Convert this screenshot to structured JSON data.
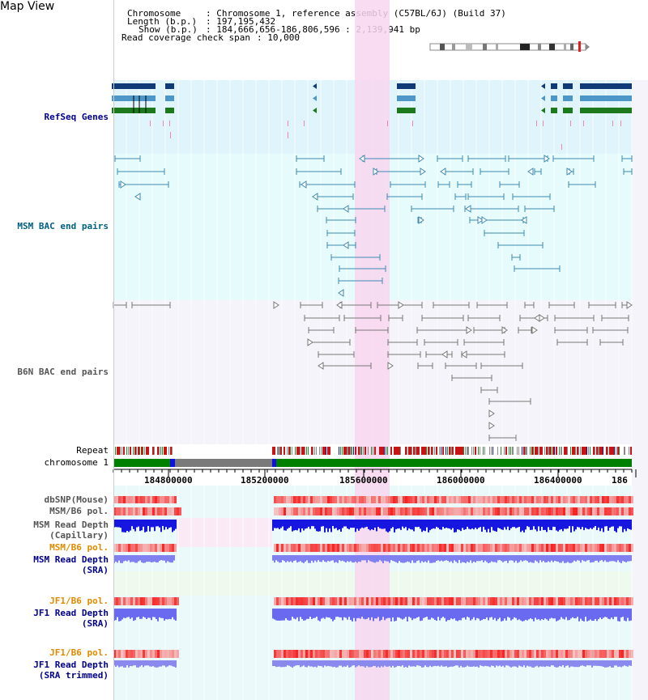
{
  "title": "Map View",
  "header": {
    "chromosome_label": "Chromosome",
    "chromosome_value": ": Chromosome 1, reference assembly (C57BL/6J) (Build 37)",
    "length_label": "Length (b.p.)",
    "length_value": ": 197,195,432",
    "show_label": "Show (b.p.)",
    "show_value": ": 184,666,656-186,806,596 : 2,139,941 bp",
    "span_label": "Read coverage check span",
    "span_value": ": 10,000"
  },
  "tracks": {
    "refseq": "RefSeq Genes",
    "msm_bac": "MSM BAC end pairs",
    "b6n_bac": "B6N BAC end pairs",
    "repeat": "Repeat",
    "chromosome": "chromosome 1",
    "dbsnp": "dbSNP(Mouse)",
    "msm_b6_pol": "MSM/B6 pol.",
    "msm_depth_cap_1": "MSM Read Depth",
    "msm_depth_cap_2": "(Capillary)",
    "msm_b6_pol_2": "MSM/B6 pol.",
    "msm_depth_sra_1": "MSM Read Depth",
    "msm_depth_sra_2": "(SRA)",
    "jf1_b6_pol": "JF1/B6 pol.",
    "jf1_depth_sra_1": "JF1 Read Depth",
    "jf1_depth_sra_2": "(SRA)",
    "jf1_b6_pol_2": "JF1/B6 pol.",
    "jf1_depth_trim_1": "JF1 Read Depth",
    "jf1_depth_trim_2": "(SRA trimmed)"
  },
  "axis_ticks": [
    "184800000",
    "185200000",
    "185600000",
    "186000000",
    "186400000",
    "186"
  ],
  "colors": {
    "refseq_bg": "#e0f4fb",
    "msm_bg": "#e6fbfb",
    "b6n_bg": "#f4f4fa",
    "highlight": "#f8d6ee",
    "gene_dark": "#103a78",
    "gene_mid": "#4c96c8",
    "gene_green": "#1c7a1c",
    "msm_pair": "#3f8ab2",
    "b6n_pair": "#777777",
    "chrom_green": "#008000",
    "chrom_gap": "#7a7a7a",
    "depth_blue": "#1e1ee6",
    "depth_light": "#8080f0",
    "label_blue": "#00008b",
    "label_orange": "#e08a00",
    "label_teal": "#006080"
  }
}
